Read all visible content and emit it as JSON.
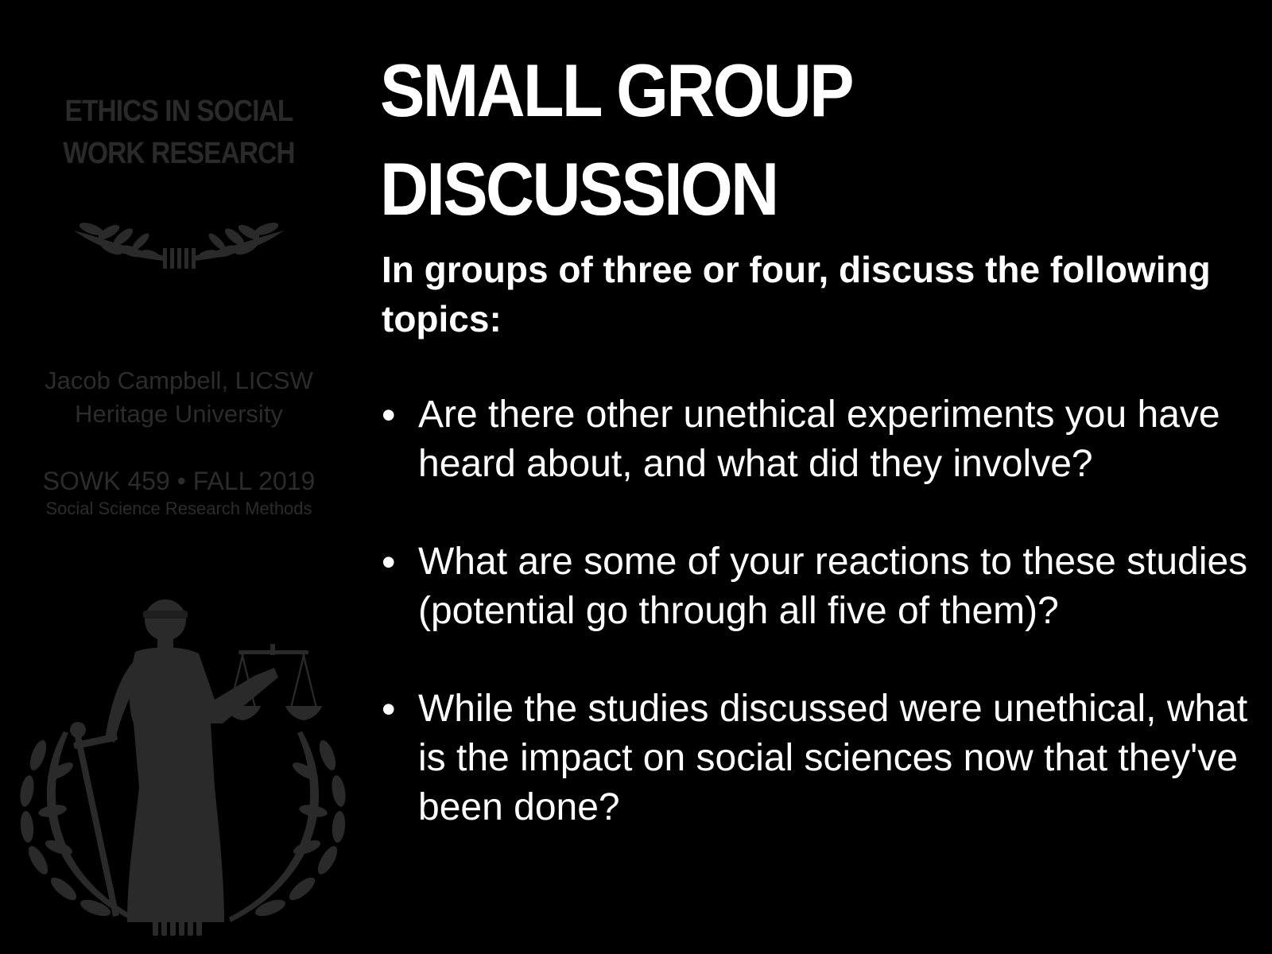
{
  "sidebar": {
    "course_title_line1": "ETHICS IN SOCIAL",
    "course_title_line2": "WORK RESEARCH",
    "instructor_name": "Jacob Campbell, LICSW",
    "institution": "Heritage University",
    "course_code": "SOWK 459 • FALL 2019",
    "course_subtitle": "Social Science Research Methods",
    "laurel_icon": "laurel-wreath-icon",
    "justice_icon": "lady-justice-icon",
    "emblem_color": "#2a2a2a"
  },
  "slide": {
    "title_line1": "SMALL GROUP",
    "title_line2": "DISCUSSION",
    "intro": "In groups of three or four, discuss the following topics:",
    "bullet_symbol": "•",
    "bullets": [
      "Are there other unethical experiments you have heard about, and what did they involve?",
      "What are some of your reactions to these studies (potential go through all five of them)?",
      "While the studies discussed were unethical, what is the impact on social sciences now that they've been done?"
    ]
  },
  "colors": {
    "background": "#000000",
    "text": "#ffffff",
    "sidebar_text": "#2c2c2c"
  }
}
